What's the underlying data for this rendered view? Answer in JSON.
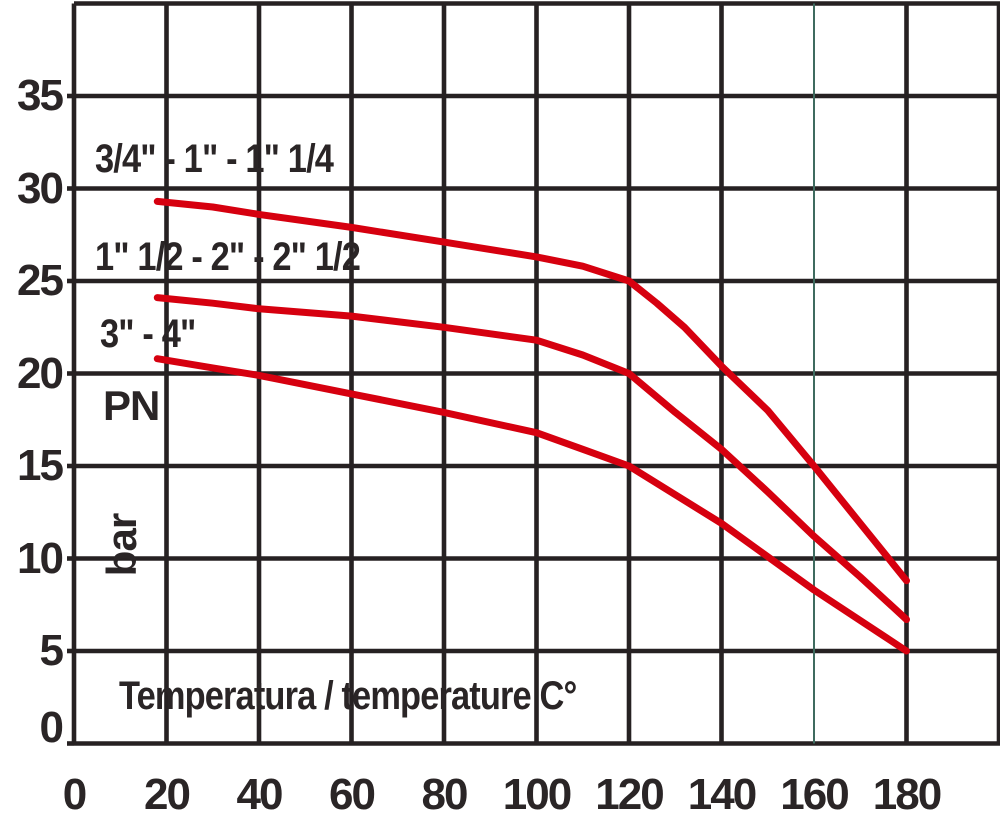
{
  "chart_data": {
    "type": "line",
    "title": "",
    "xlabel": "Temperatura / temperature C°",
    "ylabel": "PN",
    "ylabel_unit": "bar",
    "x_ticks": [
      0,
      20,
      40,
      60,
      80,
      100,
      120,
      140,
      160,
      180
    ],
    "y_ticks": [
      0,
      5,
      10,
      15,
      20,
      25,
      30,
      35
    ],
    "xlim": [
      0,
      200
    ],
    "ylim": [
      0,
      40
    ],
    "grid": true,
    "legend_position": "inline-left",
    "colors": {
      "grid": "#262122",
      "curve": "#d6000f",
      "text": "#2a2526",
      "special_gridline": "#3f6b5f"
    },
    "special_gridline": {
      "x": 160,
      "width": 2
    },
    "series": [
      {
        "name": "3/4\" - 1\" - 1\" 1/4",
        "points": [
          [
            18,
            29.3
          ],
          [
            30,
            29.0
          ],
          [
            40,
            28.6
          ],
          [
            60,
            27.9
          ],
          [
            80,
            27.1
          ],
          [
            100,
            26.3
          ],
          [
            110,
            25.8
          ],
          [
            120,
            25.0
          ],
          [
            126,
            23.8
          ],
          [
            132,
            22.5
          ],
          [
            140,
            20.4
          ],
          [
            150,
            18.0
          ],
          [
            160,
            15.0
          ],
          [
            170,
            11.9
          ],
          [
            180,
            8.8
          ]
        ]
      },
      {
        "name": "1\" 1/2 - 2\" - 2\" 1/2",
        "points": [
          [
            18,
            24.1
          ],
          [
            30,
            23.8
          ],
          [
            40,
            23.5
          ],
          [
            60,
            23.1
          ],
          [
            80,
            22.5
          ],
          [
            100,
            21.8
          ],
          [
            110,
            21.0
          ],
          [
            120,
            20.0
          ],
          [
            130,
            17.9
          ],
          [
            140,
            15.9
          ],
          [
            150,
            13.6
          ],
          [
            160,
            11.2
          ],
          [
            170,
            9.0
          ],
          [
            180,
            6.7
          ]
        ]
      },
      {
        "name": "3\" - 4\"",
        "points": [
          [
            18,
            20.8
          ],
          [
            30,
            20.3
          ],
          [
            40,
            19.9
          ],
          [
            60,
            18.9
          ],
          [
            80,
            17.9
          ],
          [
            100,
            16.8
          ],
          [
            110,
            15.9
          ],
          [
            120,
            15.0
          ],
          [
            140,
            11.9
          ],
          [
            160,
            8.3
          ],
          [
            180,
            5.0
          ]
        ]
      }
    ]
  }
}
